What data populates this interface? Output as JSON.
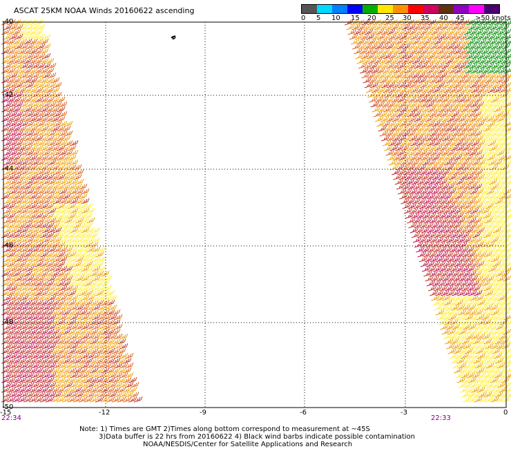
{
  "title": "ASCAT 25KM NOAA Winds 20160622 ascending",
  "legend": {
    "colors": [
      "#555555",
      "#00d8ff",
      "#0080ff",
      "#0000ff",
      "#00b000",
      "#ffe600",
      "#ff9000",
      "#ff0000",
      "#d00060",
      "#603010",
      "#9000c0",
      "#ff00ff",
      "#4a0070"
    ],
    "labels": [
      "0",
      "5",
      "10",
      "15",
      "20",
      "25",
      "30",
      "35",
      "40",
      "45",
      ">50 knots"
    ]
  },
  "map": {
    "lat_labels": [
      "-40",
      "-42",
      "-44",
      "-46",
      "-48",
      "-50"
    ],
    "lon_labels": [
      "-15",
      "-12",
      "-9",
      "-6",
      "-3",
      "0"
    ],
    "time_left": "22:34",
    "time_right": "22:33"
  },
  "notes": {
    "line1": "Note: 1) Times are GMT 2)Times along bottom correspond to measurement at ~45S",
    "line2": "3)Data buffer is 22 hrs from 20160622 4) Black wind barbs indicate possible contamination",
    "line3": "NOAA/NESDIS/Center for Satellite Applications and Research"
  },
  "barb_colors": {
    "light": "#ffee33",
    "mid": "#f0a000",
    "strong": "#e06010",
    "heavy": "#c03020",
    "extreme": "#c0104a",
    "green": "#008a00"
  }
}
